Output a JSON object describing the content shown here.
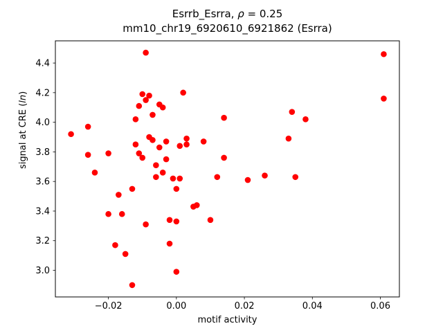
{
  "figure": {
    "title_line1_prefix": "Esrrb_Esrra, ",
    "title_line1_rho": "ρ",
    "title_line1_suffix": " = 0.25",
    "title_line2": "mm10_chr19_6920610_6921862 (Esrra)",
    "xlabel": "motif activity",
    "ylabel_prefix": "signal at CRE (",
    "ylabel_italic": "ln",
    "ylabel_suffix": ")"
  },
  "chart_data": {
    "type": "scatter",
    "title": "Esrrb_Esrra, ρ = 0.25",
    "subtitle": "mm10_chr19_6920610_6921862 (Esrra)",
    "xlabel": "motif activity",
    "ylabel": "signal at CRE (ln)",
    "marker_color": "#ff0000",
    "marker_radius": 4.3,
    "grid": false,
    "legend": "none",
    "xlim": [
      -0.0356,
      0.0656
    ],
    "ylim": [
      2.82,
      4.55
    ],
    "xtick_values": [
      -0.02,
      0.0,
      0.02,
      0.04,
      0.06
    ],
    "xtick_labels": [
      "−0.02",
      "0.00",
      "0.02",
      "0.04",
      "0.06"
    ],
    "ytick_values": [
      3.0,
      3.2,
      3.4,
      3.6,
      3.8,
      4.0,
      4.2,
      4.4
    ],
    "ytick_labels": [
      "3.0",
      "3.2",
      "3.4",
      "3.6",
      "3.8",
      "4.0",
      "4.2",
      "4.4"
    ],
    "points": [
      [
        -0.031,
        3.92
      ],
      [
        -0.026,
        3.97
      ],
      [
        -0.026,
        3.78
      ],
      [
        -0.024,
        3.66
      ],
      [
        -0.02,
        3.79
      ],
      [
        -0.02,
        3.38
      ],
      [
        -0.018,
        3.17
      ],
      [
        -0.017,
        3.51
      ],
      [
        -0.016,
        3.38
      ],
      [
        -0.015,
        3.11
      ],
      [
        -0.013,
        2.9
      ],
      [
        -0.013,
        3.55
      ],
      [
        -0.012,
        4.02
      ],
      [
        -0.012,
        3.85
      ],
      [
        -0.011,
        4.11
      ],
      [
        -0.011,
        3.79
      ],
      [
        -0.01,
        4.19
      ],
      [
        -0.01,
        3.76
      ],
      [
        -0.009,
        4.47
      ],
      [
        -0.009,
        4.15
      ],
      [
        -0.009,
        3.31
      ],
      [
        -0.008,
        4.18
      ],
      [
        -0.008,
        3.9
      ],
      [
        -0.007,
        4.05
      ],
      [
        -0.007,
        3.88
      ],
      [
        -0.006,
        3.71
      ],
      [
        -0.006,
        3.63
      ],
      [
        -0.005,
        4.12
      ],
      [
        -0.005,
        3.83
      ],
      [
        -0.004,
        4.1
      ],
      [
        -0.004,
        3.66
      ],
      [
        -0.003,
        3.87
      ],
      [
        -0.003,
        3.75
      ],
      [
        -0.002,
        3.34
      ],
      [
        -0.002,
        3.18
      ],
      [
        -0.001,
        3.62
      ],
      [
        0.0,
        2.99
      ],
      [
        0.0,
        3.55
      ],
      [
        0.0,
        3.33
      ],
      [
        0.001,
        3.84
      ],
      [
        0.001,
        3.62
      ],
      [
        0.002,
        4.2
      ],
      [
        0.003,
        3.89
      ],
      [
        0.003,
        3.85
      ],
      [
        0.005,
        3.43
      ],
      [
        0.006,
        3.44
      ],
      [
        0.008,
        3.87
      ],
      [
        0.01,
        3.34
      ],
      [
        0.012,
        3.63
      ],
      [
        0.014,
        4.03
      ],
      [
        0.014,
        3.76
      ],
      [
        0.021,
        3.61
      ],
      [
        0.026,
        3.64
      ],
      [
        0.033,
        3.89
      ],
      [
        0.034,
        4.07
      ],
      [
        0.035,
        3.63
      ],
      [
        0.038,
        4.02
      ],
      [
        0.061,
        4.46
      ],
      [
        0.061,
        4.16
      ]
    ]
  }
}
